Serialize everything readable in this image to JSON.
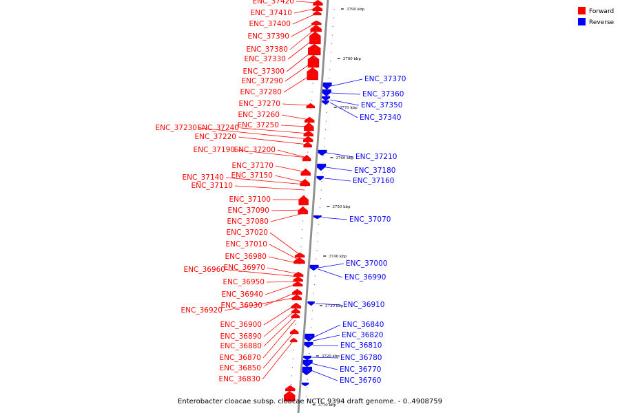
{
  "title": "Enterobacter cloacae subsp. cloacae NCTC 9394 draft genome. - 0..4908759",
  "legend": [
    {
      "label": "Forward",
      "color": "#ff0000"
    },
    {
      "label": "Reverse",
      "color": "#0000ff"
    }
  ],
  "colors": {
    "forward": "#ff0000",
    "reverse": "#0000ff",
    "backbone": "#808080"
  },
  "ticks": [
    "3790 kbp",
    "3780 kbp",
    "3770 kbp",
    "3760 kbp",
    "3750 kbp",
    "3740 kbp",
    "3730 kbp",
    "3720 kbp",
    "3710 kbp"
  ],
  "forward_labels": [
    "ENC_37420",
    "ENC_37410",
    "ENC_37400",
    "ENC_37390",
    "ENC_37380",
    "ENC_37330",
    "ENC_37300",
    "ENC_37290",
    "ENC_37280",
    "ENC_37270",
    "ENC_37260",
    "ENC_37250",
    "ENC_37240",
    "ENC_37230",
    "ENC_37220",
    "ENC_37200",
    "ENC_37190",
    "ENC_37170",
    "ENC_37150",
    "ENC_37140",
    "ENC_37110",
    "ENC_37100",
    "ENC_37090",
    "ENC_37080",
    "ENC_37020",
    "ENC_37010",
    "ENC_36980",
    "ENC_36970",
    "ENC_36960",
    "ENC_36950",
    "ENC_36940",
    "ENC_36930",
    "ENC_36920",
    "ENC_36900",
    "ENC_36890",
    "ENC_36880",
    "ENC_36870",
    "ENC_36850",
    "ENC_36830"
  ],
  "reverse_labels": [
    "ENC_37370",
    "ENC_37360",
    "ENC_37350",
    "ENC_37340",
    "ENC_37210",
    "ENC_37180",
    "ENC_37160",
    "ENC_37070",
    "ENC_37000",
    "ENC_36990",
    "ENC_36910",
    "ENC_36840",
    "ENC_36820",
    "ENC_36810",
    "ENC_36780",
    "ENC_36770",
    "ENC_36760"
  ]
}
